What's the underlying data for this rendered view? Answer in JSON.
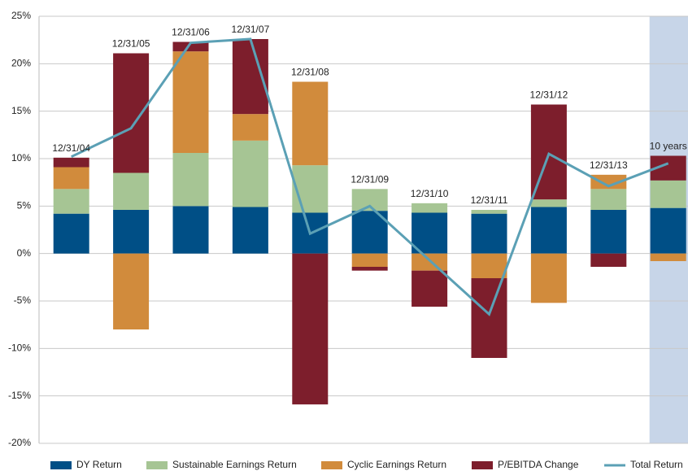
{
  "chart_data": {
    "type": "bar",
    "stacked": true,
    "categories": [
      "12/31/04",
      "12/31/05",
      "12/31/06",
      "12/31/07",
      "12/31/08",
      "12/31/09",
      "12/31/10",
      "12/31/11",
      "12/31/12",
      "12/31/13",
      "10 years"
    ],
    "series": [
      {
        "name": "DY Return",
        "color": "#004f86",
        "values": [
          4.2,
          4.6,
          5.0,
          4.9,
          4.3,
          4.5,
          4.3,
          4.2,
          4.9,
          4.6,
          4.8
        ]
      },
      {
        "name": "Sustainable Earnings Return",
        "color": "#a6c594",
        "values": [
          2.6,
          3.9,
          5.6,
          7.0,
          5.0,
          2.3,
          1.0,
          0.4,
          0.8,
          2.2,
          2.9
        ]
      },
      {
        "name": "Cyclic Earnings Return",
        "color": "#d18b3c",
        "values": [
          2.3,
          -8.0,
          10.7,
          2.8,
          8.8,
          -1.4,
          -1.8,
          -2.6,
          -5.2,
          1.5,
          -0.8
        ]
      },
      {
        "name": "P/EBITDA Change",
        "color": "#7d1e2c",
        "values": [
          1.0,
          12.6,
          1.0,
          7.9,
          -15.9,
          -0.4,
          -3.8,
          -8.4,
          10.0,
          -1.4,
          2.6
        ]
      },
      {
        "name": "Total Return",
        "color": "#5ba0b5",
        "type": "line",
        "values": [
          10.2,
          13.2,
          22.2,
          22.6,
          2.1,
          5.0,
          -0.7,
          -6.4,
          10.5,
          7.1,
          9.5
        ]
      }
    ],
    "ylim": [
      -20,
      25
    ],
    "yticks": [
      {
        "value": -20,
        "label": "-20%"
      },
      {
        "value": -15,
        "label": "-15%"
      },
      {
        "value": -10,
        "label": "-10%"
      },
      {
        "value": -5,
        "label": "-5%"
      },
      {
        "value": 0,
        "label": "0%"
      },
      {
        "value": 5,
        "label": "5%"
      },
      {
        "value": 10,
        "label": "10%"
      },
      {
        "value": 15,
        "label": "15%"
      },
      {
        "value": 20,
        "label": "20%"
      },
      {
        "value": 25,
        "label": "25%"
      }
    ],
    "grid": true,
    "highlight_last": true,
    "legend": "bottom"
  }
}
